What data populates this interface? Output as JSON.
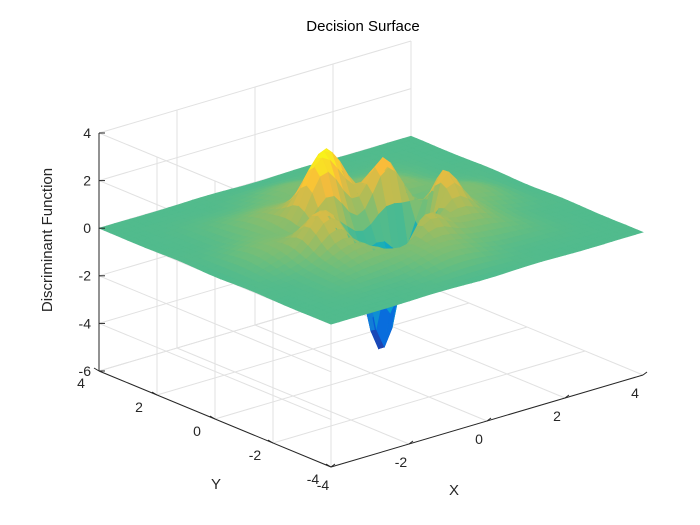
{
  "chart_data": {
    "type": "surface",
    "title": "Decision Surface",
    "xlabel": "X",
    "ylabel": "Y",
    "zlabel": "Discriminant Function",
    "xlim": [
      -4,
      4
    ],
    "ylim": [
      -4,
      4
    ],
    "zlim": [
      -6,
      4
    ],
    "x_ticks": [
      "-4",
      "-2",
      "0",
      "2",
      "4"
    ],
    "y_ticks": [
      "-4",
      "-2",
      "0",
      "2",
      "4"
    ],
    "z_ticks": [
      "-6",
      "-4",
      "-2",
      "0",
      "2",
      "4"
    ],
    "grid": true,
    "colormap": "parula",
    "baseline_z": 0.6,
    "peaks": [
      {
        "x": -0.9,
        "y": 0.5,
        "z": 3.3
      },
      {
        "x": -0.3,
        "y": 1.0,
        "z": 3.5
      },
      {
        "x": 0.6,
        "y": 0.3,
        "z": 3.6
      },
      {
        "x": 1.2,
        "y": -0.6,
        "z": 3.2
      },
      {
        "x": -1.6,
        "y": -0.5,
        "z": 2.2
      },
      {
        "x": 0.2,
        "y": -1.5,
        "z": 2.0
      }
    ],
    "troughs": [
      {
        "x": -0.4,
        "y": -0.9,
        "z": -4.4
      },
      {
        "x": 0.7,
        "y": -0.5,
        "z": -3.9
      },
      {
        "x": 0.0,
        "y": 0.0,
        "z": -1.5
      }
    ],
    "colors": {
      "axis": "#262626",
      "grid": "#e1e1e1",
      "background": "#ffffff"
    }
  }
}
